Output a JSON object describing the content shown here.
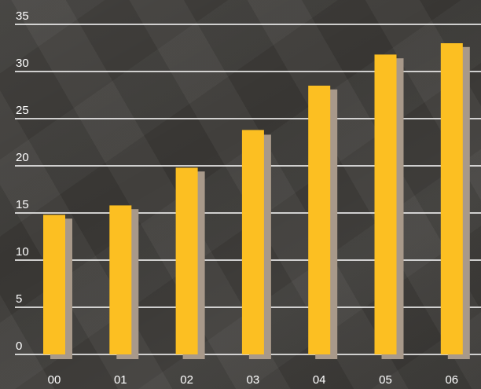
{
  "chart_data": {
    "type": "bar",
    "categories": [
      "00",
      "01",
      "02",
      "03",
      "04",
      "05",
      "06"
    ],
    "values": [
      14.8,
      15.8,
      19.8,
      23.8,
      28.5,
      31.8,
      33
    ],
    "shadow_values": [
      14.4,
      15.4,
      19.4,
      23.3,
      28.1,
      31.4,
      32.6
    ],
    "yticks": [
      0,
      5,
      10,
      15,
      20,
      25,
      30,
      35
    ],
    "ylim": [
      0,
      35
    ],
    "title": "",
    "xlabel": "",
    "ylabel": "",
    "grid": true,
    "colors": {
      "bar": "#fcbf22",
      "shadow": "#a8998a",
      "grid": "#ffffff",
      "text": "#ffffff"
    }
  }
}
